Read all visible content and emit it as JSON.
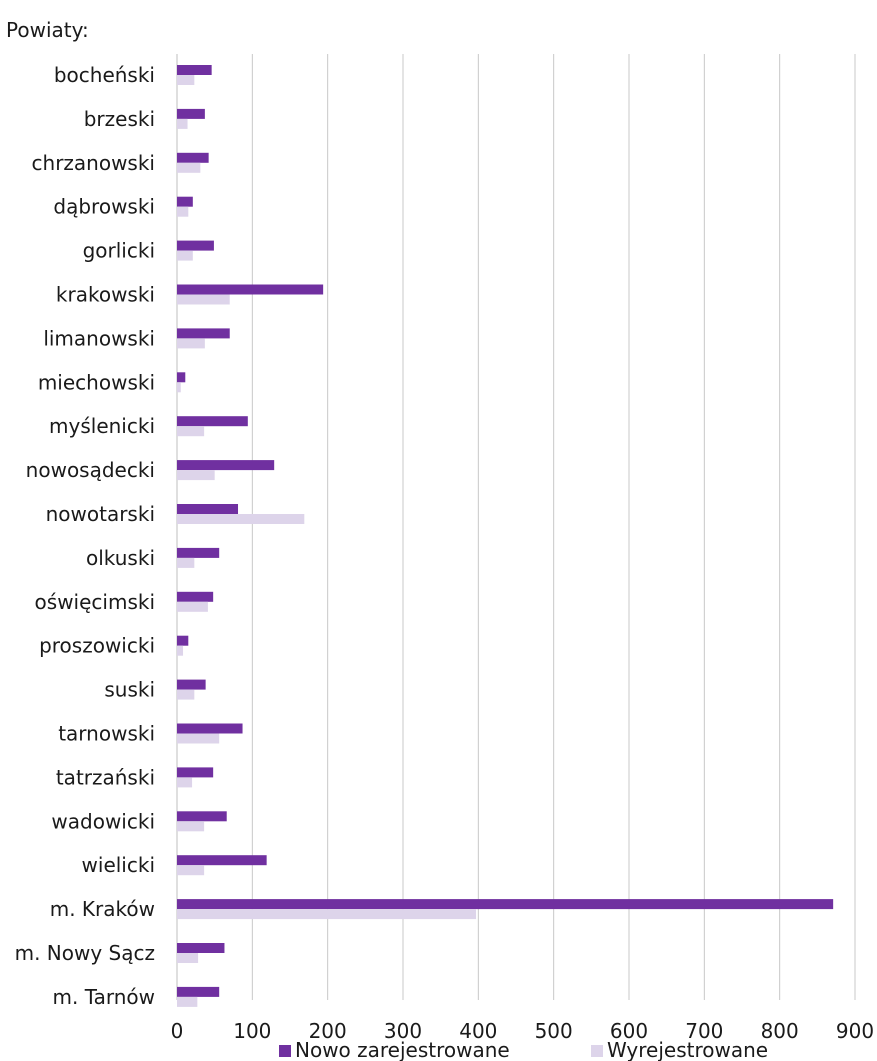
{
  "chart_data": {
    "type": "bar",
    "orientation": "horizontal",
    "title": "Powiaty:",
    "categories": [
      "bocheński",
      "brzeski",
      "chrzanowski",
      "dąbrowski",
      "gorlicki",
      "krakowski",
      "limanowski",
      "miechowski",
      "myślenicki",
      "nowosądecki",
      "nowotarski",
      "olkuski",
      "oświęcimski",
      "proszowicki",
      "suski",
      "tarnowski",
      "tatrzański",
      "wadowicki",
      "wielicki",
      "m. Kraków",
      "m. Nowy Sącz",
      "m. Tarnów"
    ],
    "series": [
      {
        "name": "Nowo zarejestrowane",
        "color": "#7030a0",
        "values": [
          46,
          37,
          42,
          21,
          49,
          194,
          70,
          11,
          94,
          129,
          81,
          56,
          48,
          15,
          38,
          87,
          48,
          66,
          119,
          871,
          63,
          56
        ]
      },
      {
        "name": "Wyrejestrowane",
        "color": "#ddd4ea",
        "values": [
          23,
          14,
          31,
          15,
          21,
          70,
          37,
          5,
          36,
          50,
          169,
          23,
          41,
          8,
          23,
          56,
          20,
          36,
          36,
          397,
          28,
          27
        ]
      }
    ],
    "xlim": [
      0,
      900
    ],
    "xticks": [
      0,
      100,
      200,
      300,
      400,
      500,
      600,
      700,
      800,
      900
    ],
    "grid": true,
    "legend_position": "bottom"
  }
}
